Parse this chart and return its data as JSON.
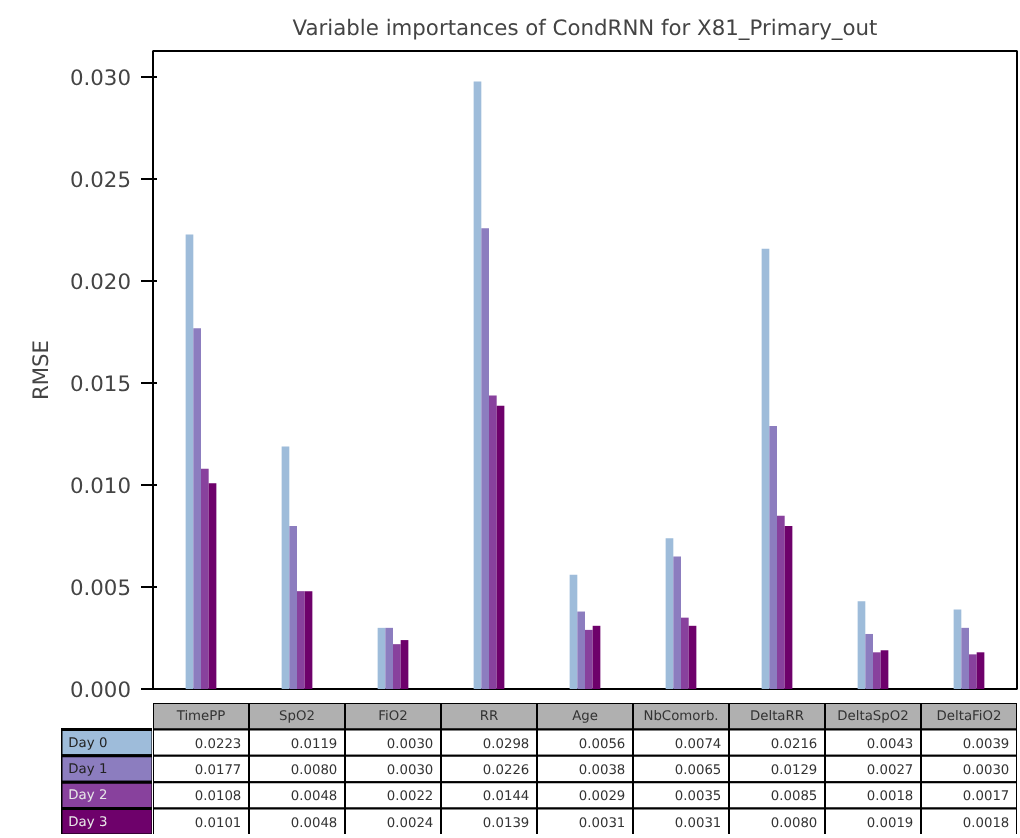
{
  "chart_data": {
    "type": "bar",
    "title": "Variable importances of CondRNN for X81_Primary_out",
    "ylabel": "RMSE",
    "categories": [
      "TimePP",
      "SpO2",
      "FiO2",
      "RR",
      "Age",
      "NbComorb.",
      "DeltaRR",
      "DeltaSpO2",
      "DeltaFiO2"
    ],
    "series": [
      {
        "name": "Day 0",
        "color": "#9ebcda",
        "values": [
          0.0223,
          0.0119,
          0.003,
          0.0298,
          0.0056,
          0.0074,
          0.0216,
          0.0043,
          0.0039
        ],
        "value_labels": [
          "0.0223",
          "0.0119",
          "0.0030",
          "0.0298",
          "0.0056",
          "0.0074",
          "0.0216",
          "0.0043",
          "0.0039"
        ]
      },
      {
        "name": "Day 1",
        "color": "#8c7dbf",
        "values": [
          0.0177,
          0.008,
          0.003,
          0.0226,
          0.0038,
          0.0065,
          0.0129,
          0.0027,
          0.003
        ],
        "value_labels": [
          "0.0177",
          "0.0080",
          "0.0030",
          "0.0226",
          "0.0038",
          "0.0065",
          "0.0129",
          "0.0027",
          "0.0030"
        ]
      },
      {
        "name": "Day 2",
        "color": "#88419d",
        "values": [
          0.0108,
          0.0048,
          0.0022,
          0.0144,
          0.0029,
          0.0035,
          0.0085,
          0.0018,
          0.0017
        ],
        "value_labels": [
          "0.0108",
          "0.0048",
          "0.0022",
          "0.0144",
          "0.0029",
          "0.0035",
          "0.0085",
          "0.0018",
          "0.0017"
        ]
      },
      {
        "name": "Day 3",
        "color": "#6e016b",
        "values": [
          0.0101,
          0.0048,
          0.0024,
          0.0139,
          0.0031,
          0.0031,
          0.008,
          0.0019,
          0.0018
        ],
        "value_labels": [
          "0.0101",
          "0.0048",
          "0.0024",
          "0.0139",
          "0.0031",
          "0.0031",
          "0.0080",
          "0.0019",
          "0.0018"
        ]
      }
    ],
    "ylim": [
      0,
      0.0313
    ],
    "yticks": [
      {
        "value": 0,
        "label": "0.000"
      },
      {
        "value": 0.005,
        "label": "0.005"
      },
      {
        "value": 0.01,
        "label": "0.010"
      },
      {
        "value": 0.015,
        "label": "0.015"
      },
      {
        "value": 0.02,
        "label": "0.020"
      },
      {
        "value": 0.025,
        "label": "0.025"
      },
      {
        "value": 0.03,
        "label": "0.030"
      }
    ],
    "grid": false,
    "legend": false
  }
}
